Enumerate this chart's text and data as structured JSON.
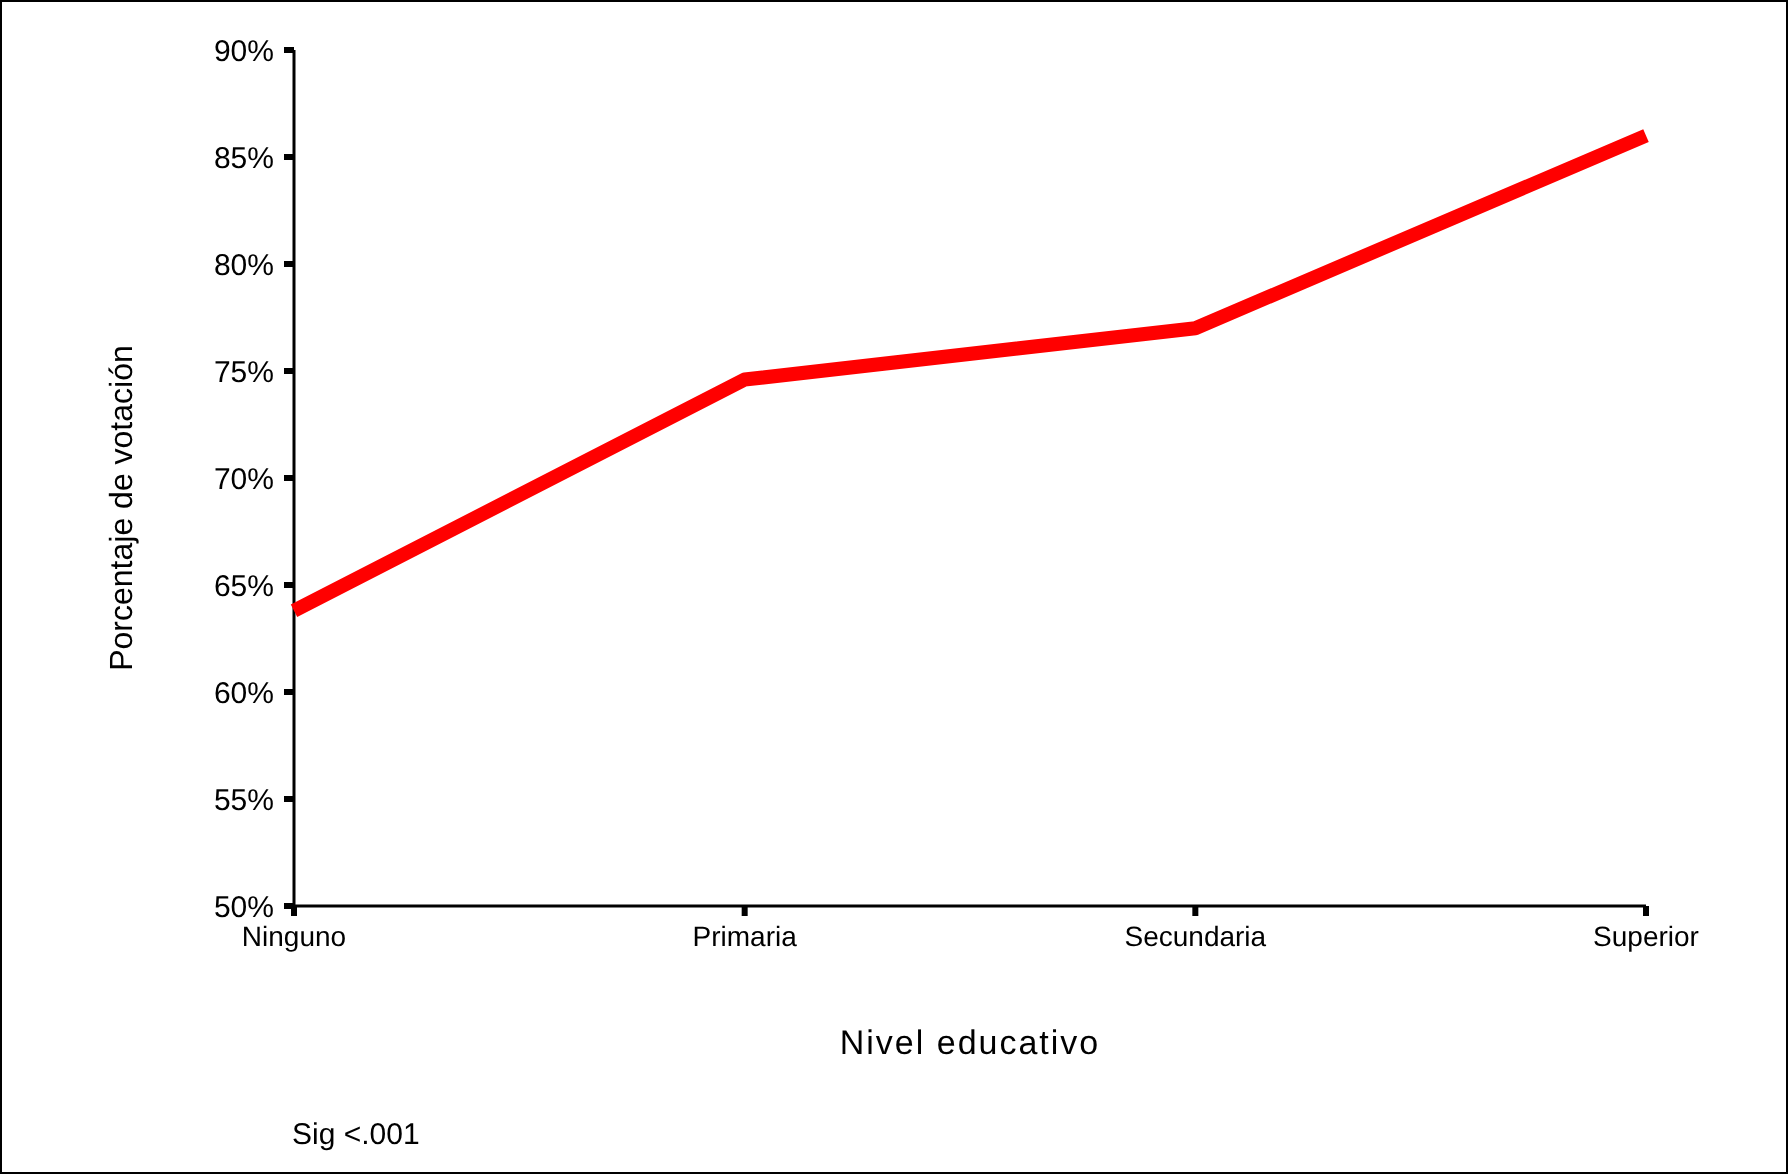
{
  "chart_data": {
    "type": "line",
    "xlabel": "Nivel educativo",
    "ylabel": "Porcentaje de votación",
    "categories": [
      "Ninguno",
      "Primaria",
      "Secundaria",
      "Superior"
    ],
    "series": [
      {
        "color": "#ff0000",
        "values": [
          63.8,
          74.6,
          77.0,
          86.0
        ]
      }
    ],
    "ylim": [
      50,
      90
    ],
    "yticks": [
      {
        "value": 50,
        "label": "50%"
      },
      {
        "value": 55,
        "label": "55%"
      },
      {
        "value": 60,
        "label": "60%"
      },
      {
        "value": 65,
        "label": "65%"
      },
      {
        "value": 70,
        "label": "70%"
      },
      {
        "value": 75,
        "label": "75%"
      },
      {
        "value": 80,
        "label": "80%"
      },
      {
        "value": 85,
        "label": "85%"
      },
      {
        "value": 90,
        "label": "90%"
      }
    ],
    "grid": false,
    "line_style": "solid",
    "annotations": [
      "Sig <.001"
    ]
  }
}
